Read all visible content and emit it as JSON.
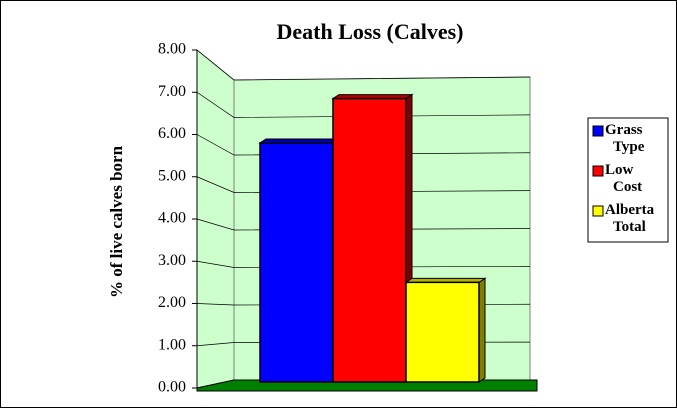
{
  "chart_data": {
    "type": "bar3d",
    "title": "Death Loss (Calves)",
    "ylabel": "% of live calves born",
    "categories": [
      null
    ],
    "series": [
      {
        "name": "Grass Type",
        "color": "#0000ff",
        "values": [
          5.8
        ]
      },
      {
        "name": "Low Cost",
        "color": "#ff0000",
        "values": [
          6.85
        ]
      },
      {
        "name": "Alberta Total",
        "color": "#ffff00",
        "values": [
          2.5
        ]
      }
    ],
    "ylim": [
      0,
      8
    ],
    "yticks": [
      {
        "value": 0,
        "label": "0.00"
      },
      {
        "value": 1,
        "label": "1.00"
      },
      {
        "value": 2,
        "label": "2.00"
      },
      {
        "value": 3,
        "label": "3.00"
      },
      {
        "value": 4,
        "label": "4.00"
      },
      {
        "value": 5,
        "label": "5.00"
      },
      {
        "value": 6,
        "label": "6.00"
      },
      {
        "value": 7,
        "label": "7.00"
      },
      {
        "value": 8,
        "label": "8.00"
      }
    ],
    "grid": true,
    "legend": "right"
  }
}
